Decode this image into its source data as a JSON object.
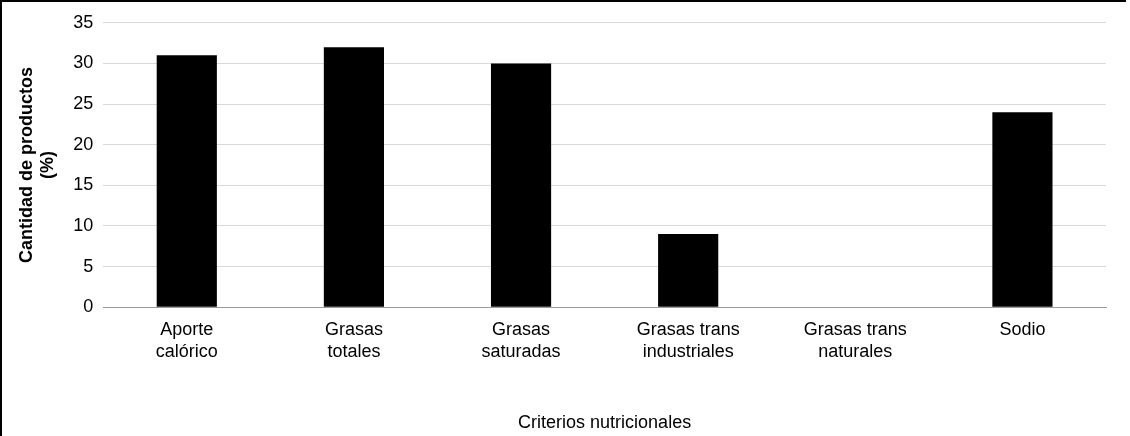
{
  "chart_data": {
    "type": "bar",
    "xlabel": "Criterios nutricionales",
    "ylabel": "Cantidad de productos (%)",
    "categories": [
      "Aporte calórico",
      "Grasas totales",
      "Grasas saturadas",
      "Grasas trans industriales",
      "Grasas trans naturales",
      "Sodio"
    ],
    "values": [
      31,
      32,
      30,
      9,
      0,
      24
    ],
    "color": "#000000",
    "ylim": [
      0,
      35
    ],
    "yticks": [
      0,
      5,
      10,
      15,
      20,
      25,
      30,
      35
    ],
    "grid": "y",
    "legend": false
  }
}
